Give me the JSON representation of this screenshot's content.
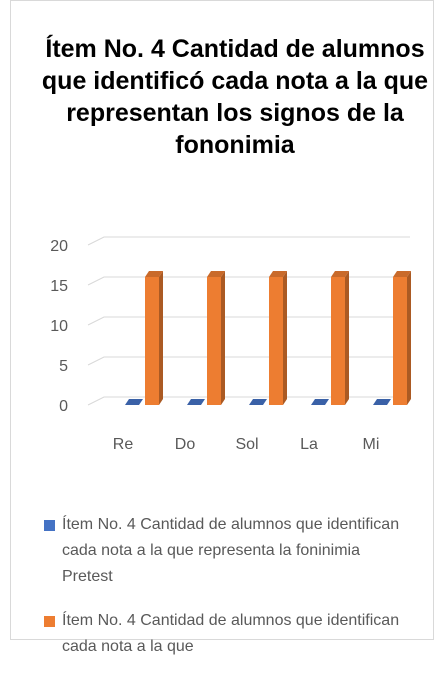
{
  "chart_data": {
    "type": "bar3d",
    "title": "Ítem No. 4 Cantidad de alumnos que identificó cada nota a la que representan los signos de la fononimia",
    "categories": [
      "Re",
      "Do",
      "Sol",
      "La",
      "Mi"
    ],
    "series": [
      {
        "name": "Ítem No. 4 Cantidad de alumnos que identifican cada nota a la que representa la foninimia Pretest",
        "color": "#4472c4",
        "values": [
          0,
          0,
          0,
          0,
          0
        ]
      },
      {
        "name": "Ítem No. 4 Cantidad de alumnos que identifican cada nota a la que",
        "color": "#ed7d31",
        "values": [
          16,
          16,
          16,
          16,
          16
        ]
      }
    ],
    "ylim": [
      0,
      20
    ],
    "yticks": [
      0,
      5,
      10,
      15,
      20
    ],
    "grid": true
  }
}
